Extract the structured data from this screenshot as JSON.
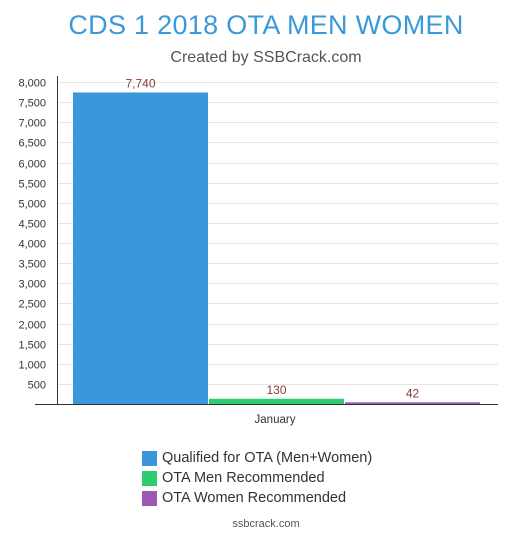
{
  "chart_data": {
    "type": "bar",
    "title": "CDS 1 2018 OTA MEN WOMEN",
    "subtitle": "Created by SSBCrack.com",
    "categories": [
      "January"
    ],
    "series": [
      {
        "name": "Qualified for OTA (Men+Women)",
        "values": [
          7740
        ],
        "color": "#3b97dc",
        "label": "7,740"
      },
      {
        "name": "OTA Men Recommended",
        "values": [
          130
        ],
        "color": "#2ecc71",
        "label": "130"
      },
      {
        "name": "OTA Women Recommended",
        "values": [
          42
        ],
        "color": "#9b59b6",
        "label": "42"
      }
    ],
    "ylim": [
      0,
      8000
    ],
    "y_ticks": [
      {
        "value": 500,
        "label": "500"
      },
      {
        "value": 1000,
        "label": "1,000"
      },
      {
        "value": 1500,
        "label": "1,500"
      },
      {
        "value": 2000,
        "label": "2,000"
      },
      {
        "value": 2500,
        "label": "2,500"
      },
      {
        "value": 3000,
        "label": "3,000"
      },
      {
        "value": 3500,
        "label": "3,500"
      },
      {
        "value": 4000,
        "label": "4,000"
      },
      {
        "value": 4500,
        "label": "4,500"
      },
      {
        "value": 5000,
        "label": "5,000"
      },
      {
        "value": 5500,
        "label": "5,500"
      },
      {
        "value": 6000,
        "label": "6,000"
      },
      {
        "value": 6500,
        "label": "6,500"
      },
      {
        "value": 7000,
        "label": "7,000"
      },
      {
        "value": 7500,
        "label": "7,500"
      },
      {
        "value": 8000,
        "label": "8,000"
      }
    ],
    "grid": true,
    "label_color": "#8b3a3a",
    "legend_position": "bottom"
  },
  "footer": "ssbcrack.com"
}
